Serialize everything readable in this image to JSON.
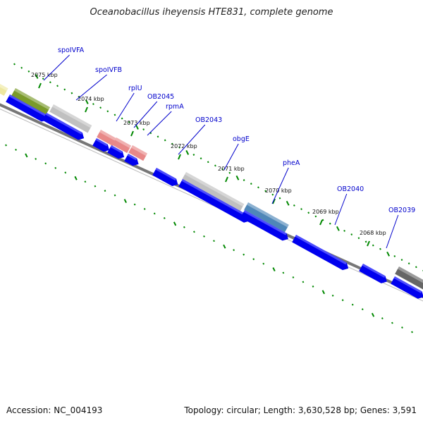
{
  "title": "Oceanobacillus iheyensis HTE831, complete genome",
  "footer": {
    "accession": "Accession: NC_004193",
    "summary": "Topology: circular; Length: 3,630,528 bp; Genes: 3,591"
  },
  "colors": {
    "gene_blue": "#0000ee",
    "gene_label": "#0000cc",
    "tick_green": "#008800",
    "backbone": "#777777",
    "olive": "#7a9a2a",
    "gray": "#c0c0c0",
    "salmon": "#e88888",
    "steelblue": "#4f87b8",
    "darkgray": "#666666",
    "yellow": "#eee8a0"
  },
  "kbp_ticks": [
    {
      "label": "2075 kbp",
      "kbp": 2075
    },
    {
      "label": "2074 kbp",
      "kbp": 2074
    },
    {
      "label": "2073 kbp",
      "kbp": 2073
    },
    {
      "label": "2072 kbp",
      "kbp": 2072
    },
    {
      "label": "2071 kbp",
      "kbp": 2071
    },
    {
      "label": "2070 kbp",
      "kbp": 2070
    },
    {
      "label": "2069 kbp",
      "kbp": 2069
    },
    {
      "label": "2068 kbp",
      "kbp": 2068
    }
  ],
  "gene_labels": [
    "spoIVFA",
    "spoIVFB",
    "rplU",
    "OB2045",
    "rpmA",
    "OB2043",
    "obgE",
    "pheA",
    "OB2040",
    "OB2039"
  ],
  "cog_features": [
    {
      "color": "yellow"
    },
    {
      "color": "olive"
    },
    {
      "color": "gray"
    },
    {
      "color": "salmon"
    },
    {
      "color": "salmon"
    },
    {
      "color": "salmon"
    },
    {
      "color": "gray"
    },
    {
      "color": "steelblue"
    },
    {
      "color": "darkgray"
    }
  ]
}
